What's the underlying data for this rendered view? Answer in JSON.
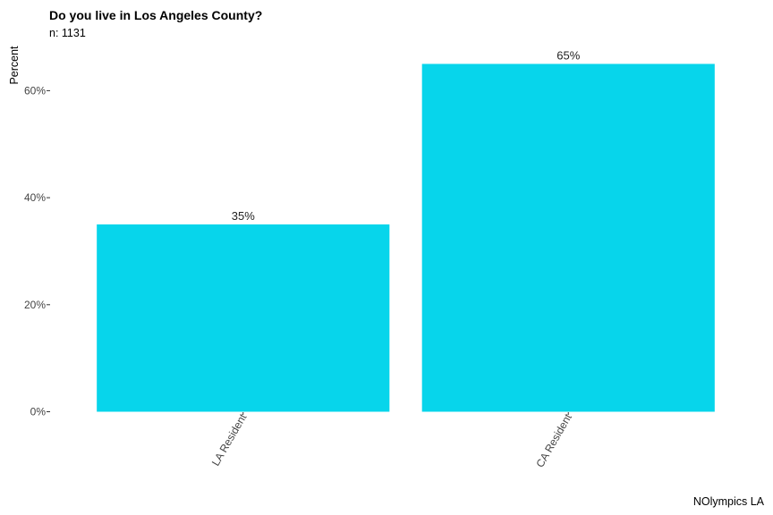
{
  "chart_data": {
    "type": "bar",
    "title": "Do you live in Los Angeles County?",
    "subtitle": "n:  1131",
    "caption": "NOlympics LA",
    "xlabel": "",
    "ylabel": "Percent",
    "categories": [
      "LA Resident",
      "CA Resident"
    ],
    "values": [
      35,
      65
    ],
    "value_labels": [
      "35%",
      "65%"
    ],
    "ylim": [
      0,
      65
    ],
    "yticks": [
      0,
      20,
      40,
      60
    ],
    "ytick_labels": [
      "0%",
      "20%",
      "40%",
      "60%"
    ],
    "bar_color": "#07D5EB",
    "grid": false
  }
}
